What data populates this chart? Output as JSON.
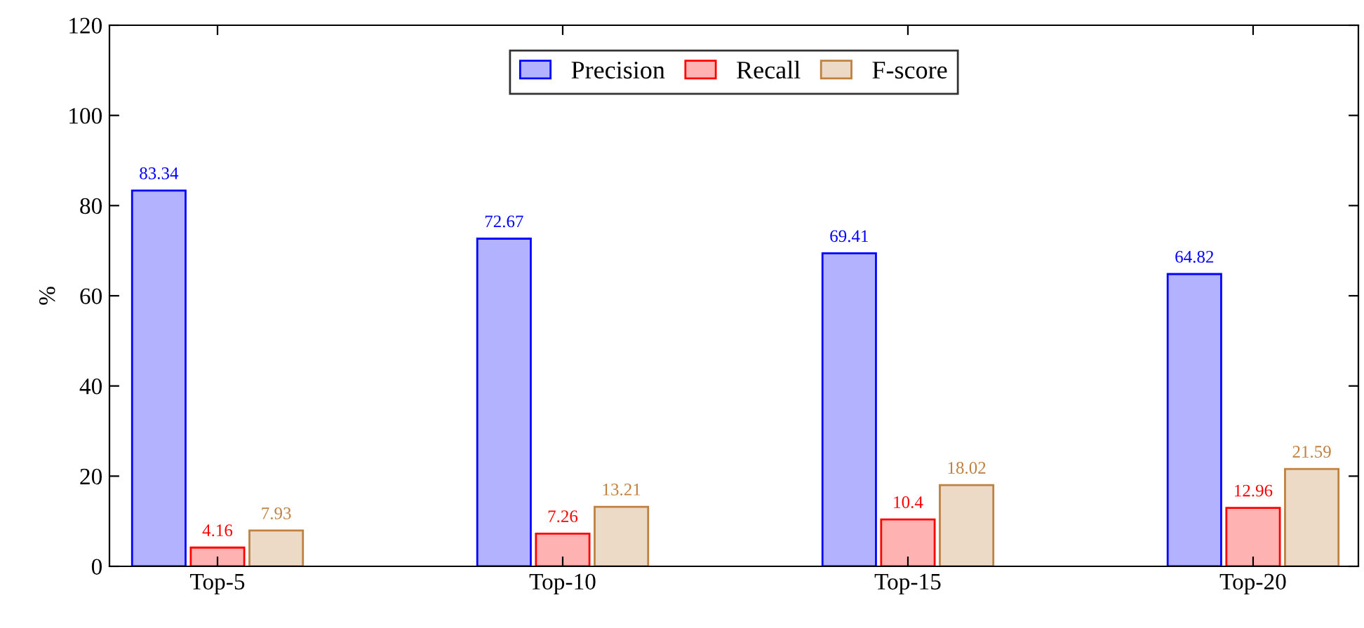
{
  "chart_data": {
    "type": "bar",
    "ylabel": "%",
    "categories": [
      "Top-5",
      "Top-10",
      "Top-15",
      "Top-20"
    ],
    "series": [
      {
        "name": "Precision",
        "color": "#0000ff",
        "values": [
          83.34,
          72.67,
          69.41,
          64.82
        ]
      },
      {
        "name": "Recall",
        "color": "#ff0000",
        "values": [
          4.16,
          7.26,
          10.4,
          12.96
        ]
      },
      {
        "name": "F-score",
        "color": "#bf8040",
        "values": [
          7.93,
          13.21,
          18.02,
          21.59
        ]
      }
    ],
    "ylim": [
      0,
      120
    ],
    "yticks": [
      0,
      20,
      40,
      60,
      80,
      100,
      120
    ],
    "data_labels": true,
    "legend": "top",
    "grid": false
  }
}
